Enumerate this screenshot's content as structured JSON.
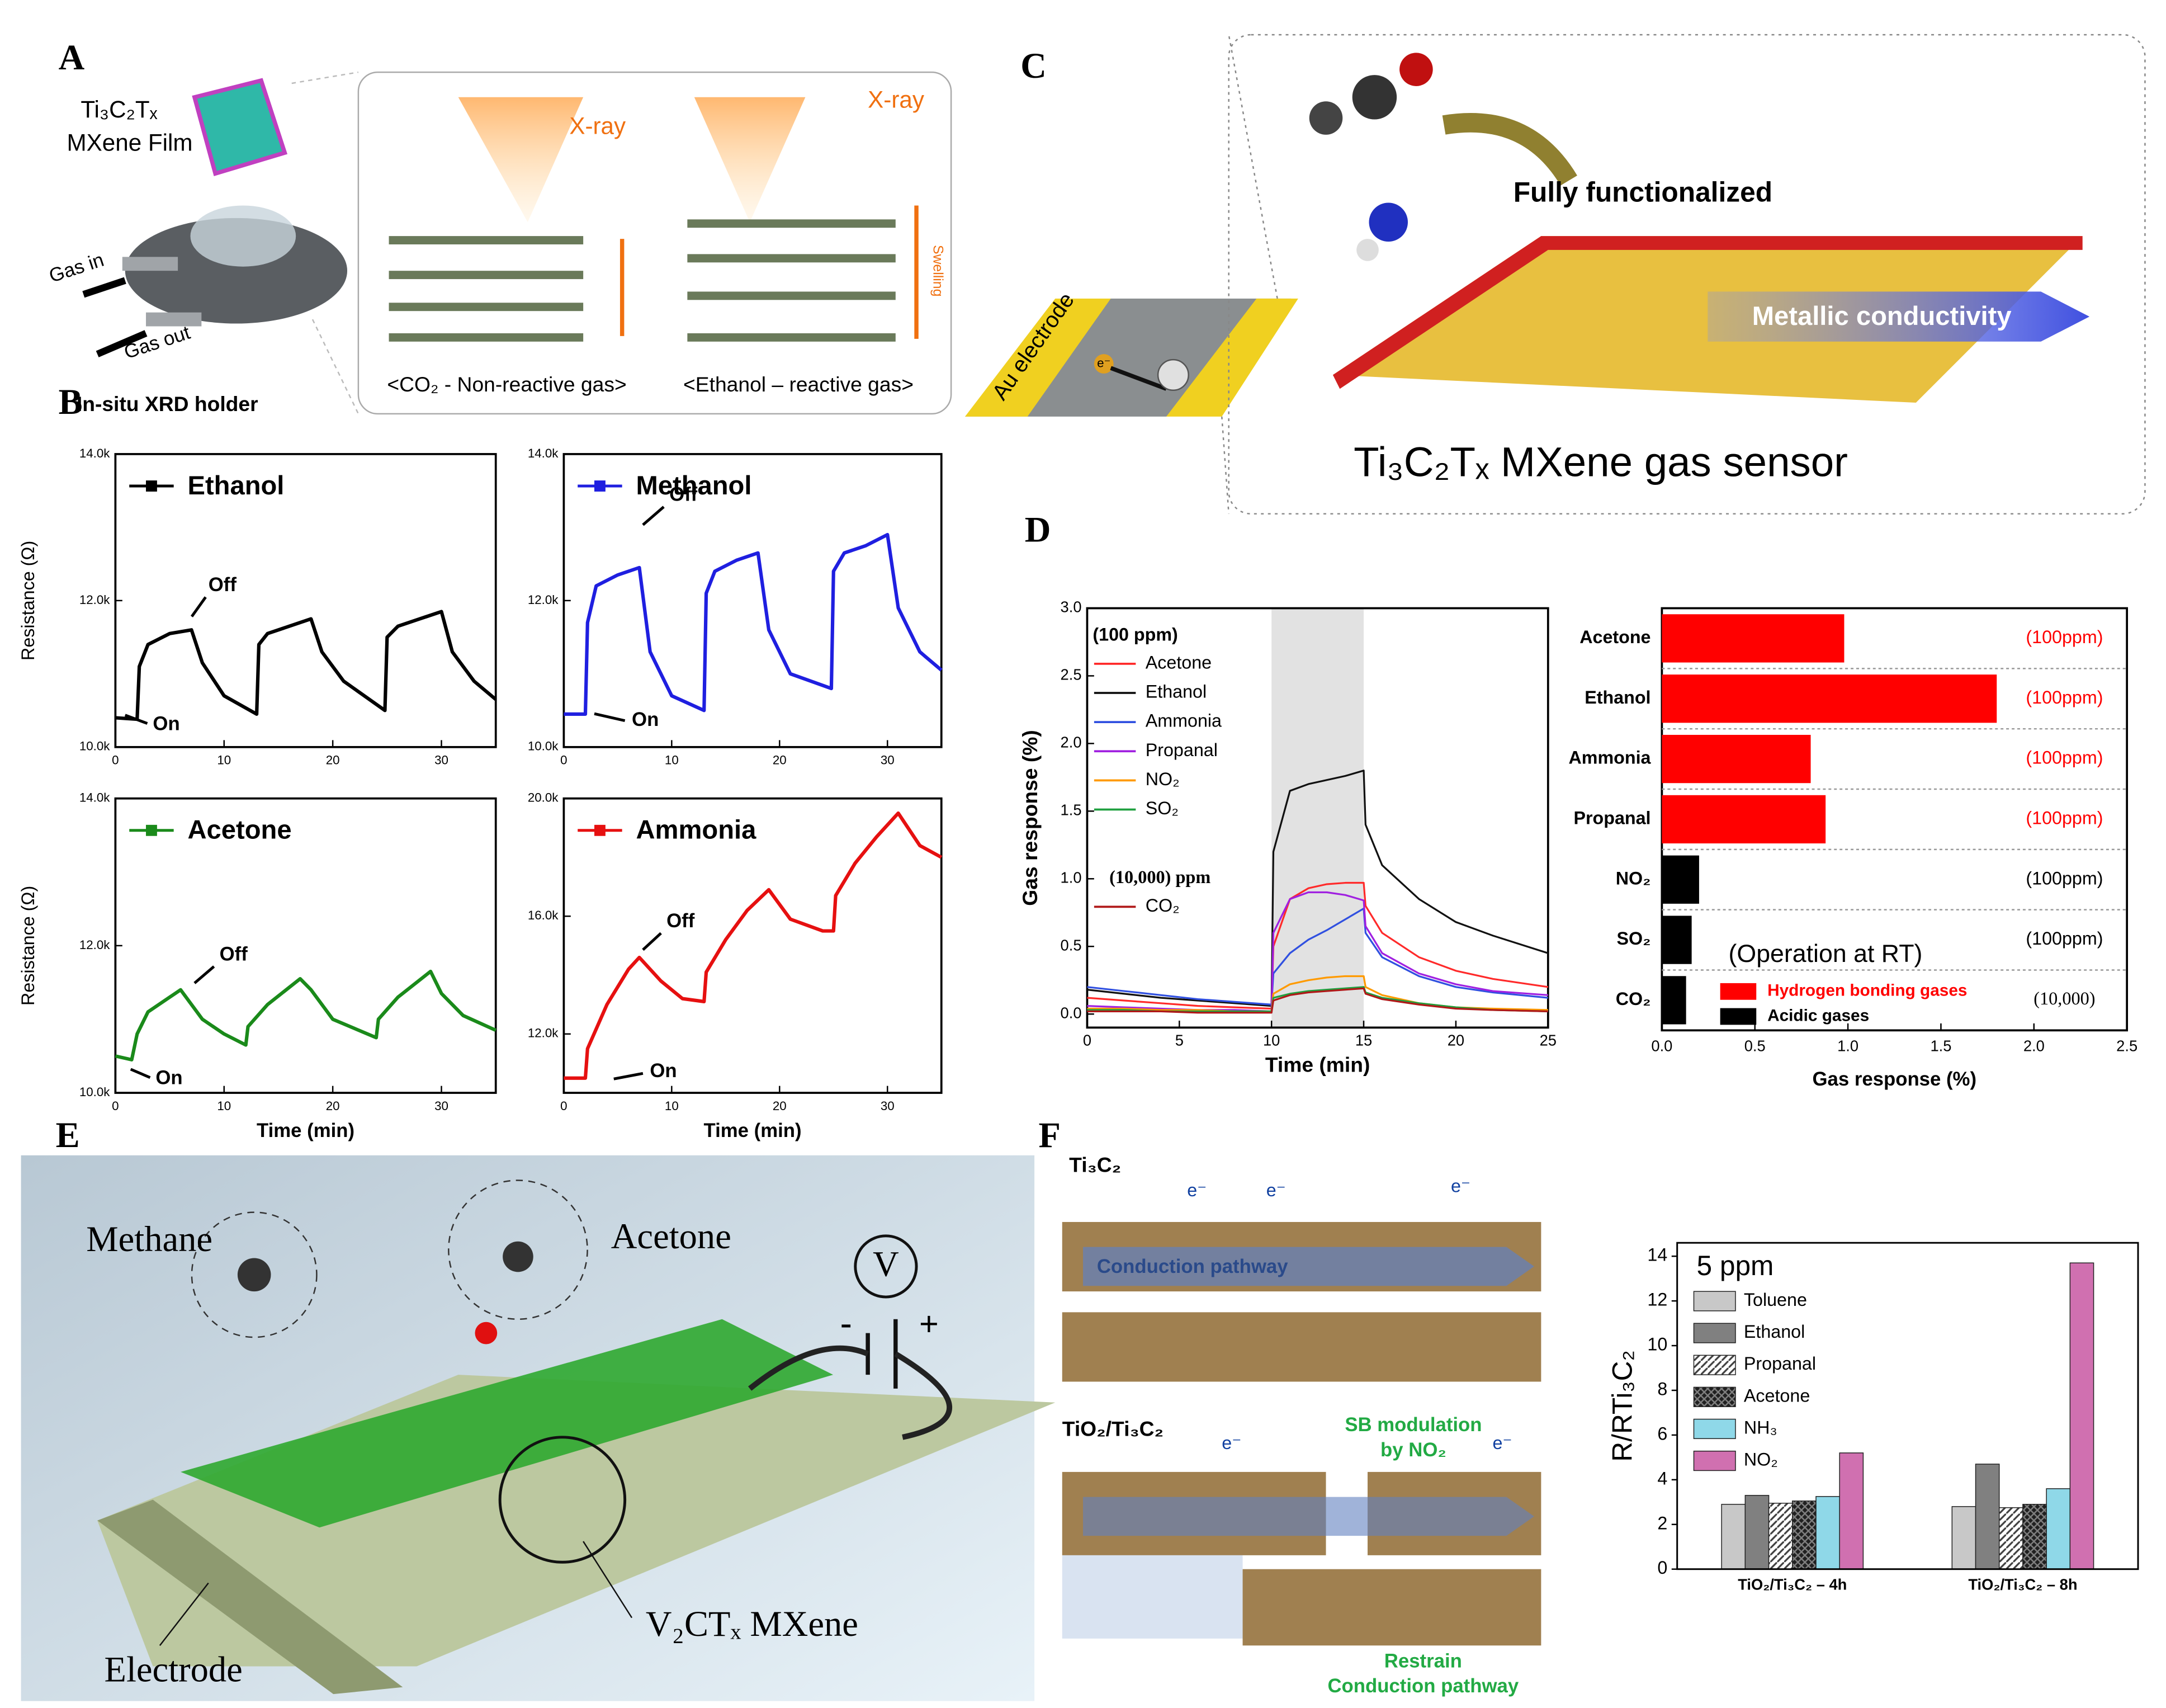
{
  "figure": {
    "panel_labels": {
      "a": "A",
      "b": "B",
      "c": "C",
      "d": "D",
      "e": "E",
      "f": "F"
    },
    "a": {
      "film_formula": "Ti₃C₂Tₓ",
      "film_label": "MXene Film",
      "gas_in": "Gas in",
      "gas_out": "Gas out",
      "holder": "In-situ XRD holder",
      "xray": "X-ray",
      "swelling": "Swelling",
      "caption_left": "<CO₂ - Non-reactive gas>",
      "caption_right": "<Ethanol – reactive gas>"
    },
    "c": {
      "electrode": "Au electrode",
      "electron": "e⁻",
      "functionalized": "Fully functionalized",
      "conductivity": "Metallic conductivity",
      "title": "Ti₃C₂Tₓ MXene gas sensor"
    },
    "e": {
      "methane": "Methane",
      "acetone": "Acetone",
      "voltmeter": "V",
      "minus": "-",
      "plus": "+",
      "mxene": "V₂CTₓ MXene",
      "electrode": "Electrode"
    },
    "f": {
      "top_label": "Ti₃C₂",
      "electron": "e⁻",
      "pathway": "Conduction pathway",
      "bottom_label": "TiO₂/Ti₃C₂",
      "sb_line1": "SB modulation",
      "sb_line2": "by NO₂",
      "restrain_line1": "Restrain",
      "restrain_line2": "Conduction pathway"
    }
  },
  "chart_data": [
    {
      "type": "line",
      "ylabel": "Resistance (Ω)",
      "xlim": [
        0,
        35
      ],
      "xticks": [
        0,
        10,
        20,
        30
      ],
      "ylim": [
        10000,
        14000
      ],
      "yticks": [
        {
          "value": 10000,
          "label": "10.0k"
        },
        {
          "value": 12000,
          "label": "12.0k"
        },
        {
          "value": 14000,
          "label": "14.0k"
        }
      ],
      "annotations": [
        "Off",
        "On"
      ],
      "series": [
        {
          "name": "Ethanol",
          "color": "#000000",
          "x": [
            0,
            2,
            2.2,
            3,
            5,
            7,
            8,
            10,
            13,
            13.2,
            14,
            16,
            18,
            19,
            21,
            24.8,
            25,
            26,
            28,
            30,
            31,
            33,
            35
          ],
          "values": [
            10400,
            10380,
            11100,
            11400,
            11550,
            11600,
            11150,
            10700,
            10450,
            11400,
            11550,
            11650,
            11750,
            11300,
            10900,
            10500,
            11500,
            11650,
            11750,
            11850,
            11300,
            10900,
            10650
          ]
        }
      ]
    },
    {
      "type": "line",
      "xlim": [
        0,
        35
      ],
      "xticks": [
        0,
        10,
        20,
        30
      ],
      "ylim": [
        10000,
        14000
      ],
      "yticks": [
        {
          "value": 10000,
          "label": "10.0k"
        },
        {
          "value": 12000,
          "label": "12.0k"
        },
        {
          "value": 14000,
          "label": "14.0k"
        }
      ],
      "annotations": [
        "Off",
        "On"
      ],
      "series": [
        {
          "name": "Methanol",
          "color": "#1f1fe0",
          "x": [
            0,
            2,
            2.2,
            3,
            5,
            7,
            8,
            10,
            13,
            13.2,
            14,
            16,
            18,
            19,
            21,
            24.8,
            25,
            26,
            28,
            30,
            31,
            33,
            35
          ],
          "values": [
            10450,
            10450,
            11700,
            12200,
            12350,
            12450,
            11300,
            10700,
            10500,
            12100,
            12400,
            12550,
            12650,
            11600,
            11000,
            10800,
            12400,
            12650,
            12750,
            12900,
            11900,
            11300,
            11050
          ]
        }
      ]
    },
    {
      "type": "line",
      "ylabel": "Resistance (Ω)",
      "xlabel": "Time (min)",
      "xlim": [
        0,
        35
      ],
      "xticks": [
        0,
        10,
        20,
        30
      ],
      "ylim": [
        10000,
        14000
      ],
      "yticks": [
        {
          "value": 10000,
          "label": "10.0k"
        },
        {
          "value": 12000,
          "label": "12.0k"
        },
        {
          "value": 14000,
          "label": "14.0k"
        }
      ],
      "annotations": [
        "Off",
        "On"
      ],
      "series": [
        {
          "name": "Acetone",
          "color": "#1a8a1a",
          "x": [
            0,
            1.5,
            2,
            3,
            5,
            6,
            8,
            10,
            12,
            12.2,
            14,
            17,
            18,
            20,
            24,
            24.2,
            26,
            29,
            30,
            32,
            35
          ],
          "values": [
            10500,
            10450,
            10800,
            11100,
            11300,
            11400,
            11000,
            10800,
            10650,
            10900,
            11200,
            11550,
            11400,
            11000,
            10750,
            11000,
            11300,
            11650,
            11350,
            11050,
            10850
          ]
        }
      ]
    },
    {
      "type": "line",
      "xlabel": "Time (min)",
      "xlim": [
        0,
        35
      ],
      "xticks": [
        0,
        10,
        20,
        30
      ],
      "ylim": [
        10000,
        20000
      ],
      "yticks": [
        {
          "value": 12000,
          "label": "12.0k"
        },
        {
          "value": 16000,
          "label": "16.0k"
        },
        {
          "value": 20000,
          "label": "20.0k"
        }
      ],
      "annotations": [
        "Off",
        "On"
      ],
      "series": [
        {
          "name": "Ammonia",
          "color": "#e61010",
          "x": [
            0,
            2,
            2.2,
            4,
            6,
            7,
            9,
            11,
            13,
            13.2,
            15,
            17,
            19,
            21,
            24,
            25,
            25.2,
            27,
            29,
            31,
            33,
            35
          ],
          "values": [
            10500,
            10500,
            11500,
            13000,
            14200,
            14600,
            13800,
            13200,
            13100,
            14100,
            15200,
            16200,
            16900,
            15900,
            15500,
            15500,
            16700,
            17800,
            18700,
            19500,
            18400,
            18000
          ]
        }
      ]
    },
    {
      "type": "line",
      "xlabel": "Time (min)",
      "ylabel": "Gas response (%)",
      "xlim": [
        0,
        25
      ],
      "xticks": [
        0,
        5,
        10,
        15,
        20,
        25
      ],
      "ylim": [
        -0.1,
        3.0
      ],
      "yticks": [
        {
          "value": 0,
          "label": "0.0"
        },
        {
          "value": 0.5,
          "label": "0.5"
        },
        {
          "value": 1,
          "label": "1.0"
        },
        {
          "value": 1.5,
          "label": "1.5"
        },
        {
          "value": 2,
          "label": "2.0"
        },
        {
          "value": 2.5,
          "label": "2.5"
        },
        {
          "value": 3,
          "label": "3.0"
        }
      ],
      "shaded_span": [
        10,
        15
      ],
      "legend_titles": [
        "(100 ppm)",
        "(10,000) ppm"
      ],
      "x": [
        0,
        2,
        4,
        6,
        8,
        10,
        10.1,
        11,
        12,
        13,
        14,
        15,
        15.1,
        16,
        18,
        20,
        22,
        25
      ],
      "series": [
        {
          "name": "Acetone",
          "color": "#ff2a2a",
          "values": [
            0.12,
            0.1,
            0.08,
            0.06,
            0.05,
            0.04,
            0.5,
            0.85,
            0.93,
            0.96,
            0.97,
            0.97,
            0.8,
            0.6,
            0.42,
            0.32,
            0.26,
            0.2
          ]
        },
        {
          "name": "Ethanol",
          "color": "#111111",
          "values": [
            0.18,
            0.15,
            0.12,
            0.1,
            0.08,
            0.06,
            1.2,
            1.65,
            1.7,
            1.73,
            1.76,
            1.8,
            1.4,
            1.1,
            0.85,
            0.68,
            0.58,
            0.45
          ]
        },
        {
          "name": "Ammonia",
          "color": "#3050e0",
          "values": [
            0.2,
            0.17,
            0.14,
            0.11,
            0.09,
            0.07,
            0.3,
            0.45,
            0.55,
            0.62,
            0.7,
            0.78,
            0.6,
            0.42,
            0.28,
            0.2,
            0.16,
            0.12
          ]
        },
        {
          "name": "Propanal",
          "color": "#a020e0",
          "values": [
            0.06,
            0.05,
            0.04,
            0.03,
            0.03,
            0.02,
            0.6,
            0.85,
            0.9,
            0.9,
            0.88,
            0.84,
            0.65,
            0.45,
            0.3,
            0.22,
            0.17,
            0.14
          ]
        },
        {
          "name": "NO₂",
          "color": "#ff9a00",
          "values": [
            0.04,
            0.04,
            0.03,
            0.03,
            0.02,
            0.02,
            0.15,
            0.22,
            0.25,
            0.27,
            0.28,
            0.28,
            0.2,
            0.14,
            0.08,
            0.05,
            0.04,
            0.03
          ]
        },
        {
          "name": "SO₂",
          "color": "#20a040",
          "values": [
            0.03,
            0.03,
            0.02,
            0.02,
            0.02,
            0.02,
            0.12,
            0.15,
            0.17,
            0.18,
            0.19,
            0.2,
            0.16,
            0.12,
            0.08,
            0.05,
            0.03,
            0.02
          ]
        },
        {
          "name": "CO₂",
          "color": "#b01818",
          "values": [
            0.02,
            0.02,
            0.02,
            0.01,
            0.01,
            0.01,
            0.1,
            0.14,
            0.16,
            0.17,
            0.18,
            0.19,
            0.15,
            0.11,
            0.07,
            0.04,
            0.03,
            0.02
          ]
        }
      ]
    },
    {
      "type": "hbar",
      "xlabel": "Gas response (%)",
      "xlim": [
        0,
        2.5
      ],
      "xticks": [
        {
          "value": 0,
          "label": "0.0"
        },
        {
          "value": 0.5,
          "label": "0.5"
        },
        {
          "value": 1,
          "label": "1.0"
        },
        {
          "value": 1.5,
          "label": "1.5"
        },
        {
          "value": 2,
          "label": "2.0"
        },
        {
          "value": 2.5,
          "label": "2.5"
        }
      ],
      "categories": [
        "Acetone",
        "Ethanol",
        "Ammonia",
        "Propanal",
        "NO₂",
        "SO₂",
        "CO₂"
      ],
      "values": [
        0.98,
        1.8,
        0.8,
        0.88,
        0.2,
        0.16,
        0.13
      ],
      "colors": [
        "#ff0000",
        "#ff0000",
        "#ff0000",
        "#ff0000",
        "#000000",
        "#000000",
        "#000000"
      ],
      "concentrations": [
        "(100ppm)",
        "(100ppm)",
        "(100ppm)",
        "(100ppm)",
        "(100ppm)",
        "(100ppm)",
        "(10,000)"
      ],
      "annotation": "(Operation at RT)",
      "legend": [
        {
          "name": "Hydrogen bonding gases",
          "color": "#ff0000"
        },
        {
          "name": "Acidic gases",
          "color": "#000000"
        }
      ]
    },
    {
      "type": "grouped_bar",
      "title": "5 ppm",
      "ylabel": "R/RTi₃C₂",
      "ylim": [
        0,
        14.6
      ],
      "yticks": [
        0,
        2,
        4,
        6,
        8,
        10,
        12,
        14
      ],
      "categories": [
        "TiO₂/Ti₃C₂ – 4h",
        "TiO₂/Ti₃C₂ – 8h"
      ],
      "series": [
        {
          "name": "Toluene",
          "color": "#c8c8c8",
          "values": [
            2.9,
            2.8
          ]
        },
        {
          "name": "Ethanol",
          "color": "#808080",
          "values": [
            3.3,
            4.7
          ]
        },
        {
          "name": "Propanal",
          "color": "#606060",
          "pattern": "hatch",
          "values": [
            2.95,
            2.75
          ]
        },
        {
          "name": "Acetone",
          "color": "#303030",
          "pattern": "crosshatch",
          "values": [
            3.05,
            2.9
          ]
        },
        {
          "name": "NH₃",
          "color": "#8fd8e8",
          "values": [
            3.25,
            3.6
          ]
        },
        {
          "name": "NO₂",
          "color": "#d070b0",
          "values": [
            5.2,
            13.7
          ]
        }
      ]
    }
  ]
}
